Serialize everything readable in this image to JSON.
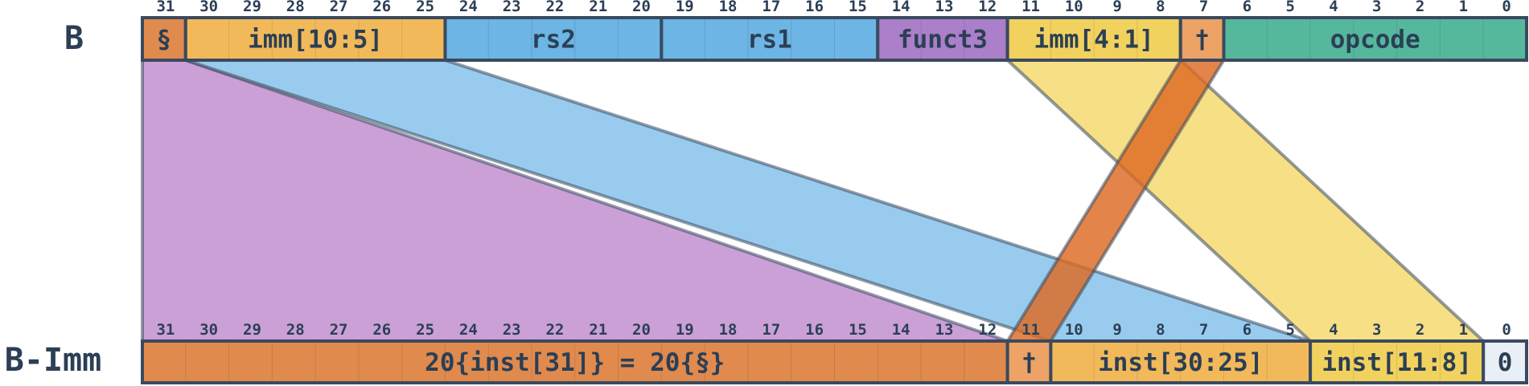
{
  "colors": {
    "outline": "#3b4a5e",
    "ink": "#2b3f55",
    "sign": "#e08a4e",
    "imm10_5": "#f2b95a",
    "rs": "#6cb5e5",
    "funct3": "#ab7fc9",
    "imm4_1": "#f2d25e",
    "bit11": "#eda266",
    "opcode": "#55b89d",
    "zero": "#e8eff6",
    "band_purple": "#c596d3",
    "band_blue": "#8ec5ec",
    "band_yellow": "#f6dc78",
    "band_orange": "#dd6a22"
  },
  "top_row": {
    "label": "B",
    "bits": [
      "31",
      "30",
      "29",
      "28",
      "27",
      "26",
      "25",
      "24",
      "23",
      "22",
      "21",
      "20",
      "19",
      "18",
      "17",
      "16",
      "15",
      "14",
      "13",
      "12",
      "11",
      "10",
      "9",
      "8",
      "7",
      "6",
      "5",
      "4",
      "3",
      "2",
      "1",
      "0"
    ],
    "fields": [
      {
        "hi": 31,
        "lo": 31,
        "text": "§",
        "color": "sign"
      },
      {
        "hi": 30,
        "lo": 25,
        "text": "imm[10:5]",
        "color": "imm10_5"
      },
      {
        "hi": 24,
        "lo": 20,
        "text": "rs2",
        "color": "rs"
      },
      {
        "hi": 19,
        "lo": 15,
        "text": "rs1",
        "color": "rs"
      },
      {
        "hi": 14,
        "lo": 12,
        "text": "funct3",
        "color": "funct3"
      },
      {
        "hi": 11,
        "lo": 8,
        "text": "imm[4:1]",
        "color": "imm4_1"
      },
      {
        "hi": 7,
        "lo": 7,
        "text": "†",
        "color": "bit11"
      },
      {
        "hi": 6,
        "lo": 0,
        "text": "opcode",
        "color": "opcode"
      }
    ]
  },
  "bottom_row": {
    "label": "B-Imm",
    "bits": [
      "31",
      "30",
      "29",
      "28",
      "27",
      "26",
      "25",
      "24",
      "23",
      "22",
      "21",
      "20",
      "19",
      "18",
      "17",
      "16",
      "15",
      "14",
      "13",
      "12",
      "11",
      "10",
      "9",
      "8",
      "7",
      "6",
      "5",
      "4",
      "3",
      "2",
      "1",
      "0"
    ],
    "fields": [
      {
        "hi": 31,
        "lo": 12,
        "text": "20{inst[31]} = 20{§}",
        "color": "sign"
      },
      {
        "hi": 11,
        "lo": 11,
        "text": "†",
        "color": "bit11"
      },
      {
        "hi": 10,
        "lo": 5,
        "text": "inst[30:25]",
        "color": "imm10_5"
      },
      {
        "hi": 4,
        "lo": 1,
        "text": "inst[11:8]",
        "color": "imm4_1"
      },
      {
        "hi": 0,
        "lo": 0,
        "text": "0",
        "color": "zero"
      }
    ]
  },
  "mappings": [
    {
      "name": "sign-extension",
      "from": [
        31,
        31
      ],
      "to": [
        31,
        12
      ],
      "color": "band_purple"
    },
    {
      "name": "imm-10-5",
      "from": [
        30,
        25
      ],
      "to": [
        10,
        5
      ],
      "color": "band_blue"
    },
    {
      "name": "imm-4-1",
      "from": [
        11,
        8
      ],
      "to": [
        4,
        1
      ],
      "color": "band_yellow"
    },
    {
      "name": "imm-11",
      "from": [
        7,
        7
      ],
      "to": [
        11,
        11
      ],
      "color": "band_orange"
    }
  ]
}
